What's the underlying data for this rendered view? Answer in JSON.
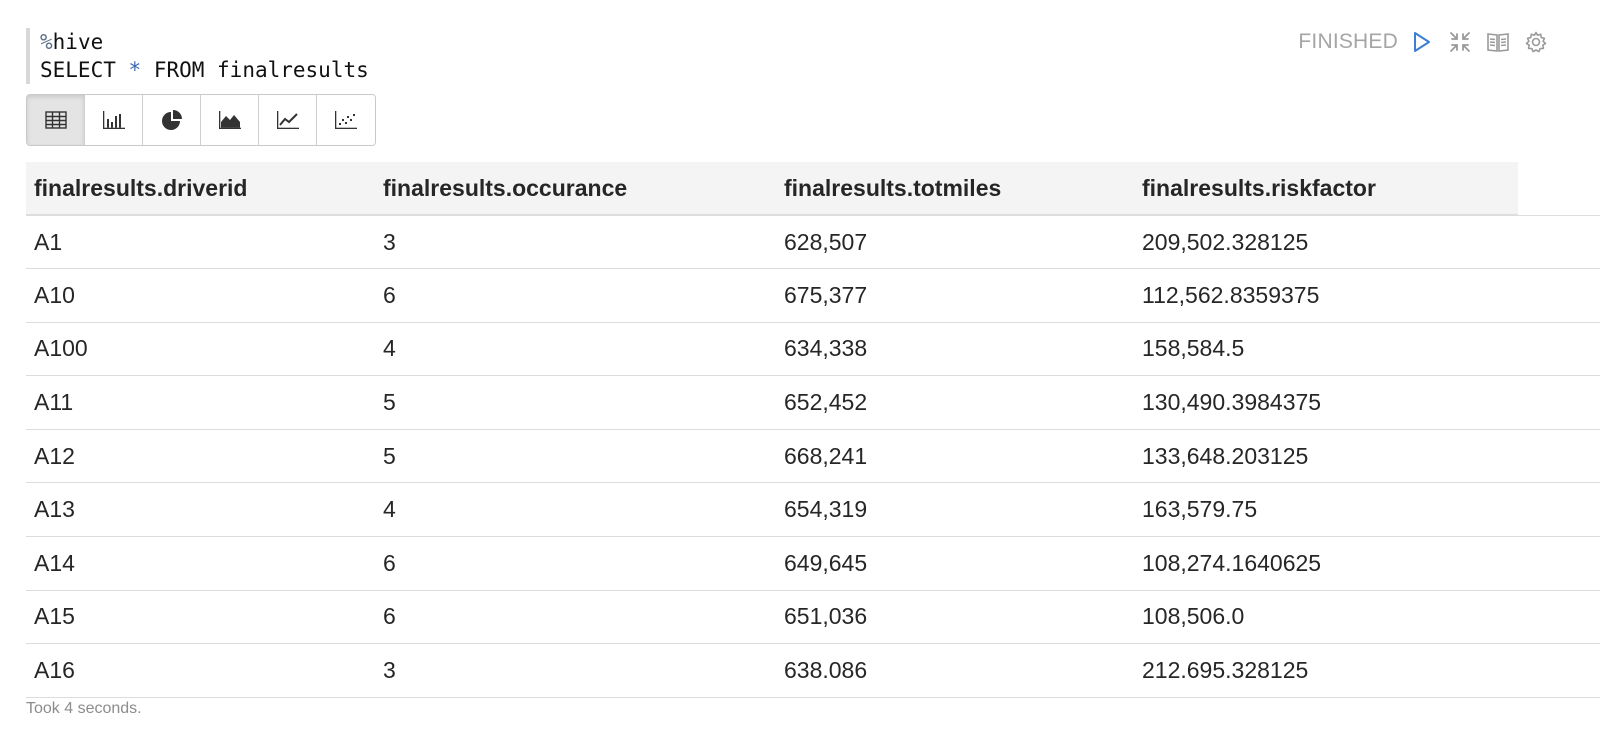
{
  "paragraph": {
    "code_lines": [
      {
        "prefix": "%",
        "rest": "hive"
      },
      {
        "before": "SELECT ",
        "op": "*",
        "after": " FROM finalresults"
      }
    ],
    "status": "FINISHED",
    "controls": [
      "run-icon",
      "collapse-icon",
      "book-icon",
      "settings-icon"
    ]
  },
  "viz_toolbar": {
    "active": "table",
    "buttons": [
      "table-icon",
      "bar-chart-icon",
      "pie-chart-icon",
      "area-chart-icon",
      "line-chart-icon",
      "scatter-chart-icon"
    ]
  },
  "table": {
    "columns": [
      "finalresults.driverid",
      "finalresults.occurance",
      "finalresults.totmiles",
      "finalresults.riskfactor"
    ],
    "rows": [
      [
        "A1",
        "3",
        "628,507",
        "209,502.328125"
      ],
      [
        "A10",
        "6",
        "675,377",
        "112,562.8359375"
      ],
      [
        "A100",
        "4",
        "634,338",
        "158,584.5"
      ],
      [
        "A11",
        "5",
        "652,452",
        "130,490.3984375"
      ],
      [
        "A12",
        "5",
        "668,241",
        "133,648.203125"
      ],
      [
        "A13",
        "4",
        "654,319",
        "163,579.75"
      ],
      [
        "A14",
        "6",
        "649,645",
        "108,274.1640625"
      ],
      [
        "A15",
        "6",
        "651,036",
        "108,506.0"
      ],
      [
        "A16",
        "3",
        "638.086",
        "212.695.328125"
      ]
    ]
  },
  "footer": {
    "elapsed": "Took 4 seconds."
  },
  "colors": {
    "accent": "#3b7fd4",
    "status": "#a5a5a5",
    "header_bg": "#f4f4f4"
  }
}
